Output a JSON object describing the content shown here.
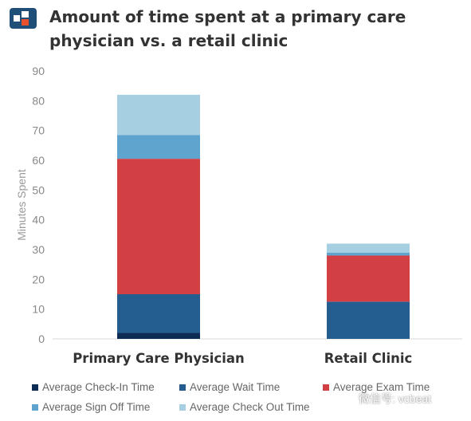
{
  "header": {
    "title": "Amount of time spent at a primary care physician vs. a retail clinic"
  },
  "logo": {
    "icon": "brand-logo-icon",
    "colors": [
      "#1f4e79",
      "#e8502f"
    ]
  },
  "chart_data": {
    "type": "bar",
    "stacked": true,
    "categories": [
      "Primary Care Physician",
      "Retail Clinic"
    ],
    "series": [
      {
        "name": "Average Check-In Time",
        "color": "#0d2c54",
        "values": [
          2,
          0
        ]
      },
      {
        "name": "Average Wait Time",
        "color": "#245d8f",
        "values": [
          13,
          12.5
        ]
      },
      {
        "name": "Average Exam Time",
        "color": "#d34043",
        "values": [
          45.5,
          15.5
        ]
      },
      {
        "name": "Average Sign Off Time",
        "color": "#5ea4cf",
        "values": [
          8,
          1
        ]
      },
      {
        "name": "Average Check Out Time",
        "color": "#a6d0e2",
        "values": [
          13.5,
          3
        ]
      }
    ],
    "ylabel": "Minutes Spent",
    "xlabel": "",
    "ylim": [
      0,
      90
    ],
    "yticks": [
      0,
      10,
      20,
      30,
      40,
      50,
      60,
      70,
      80,
      90
    ],
    "grid": false,
    "legend": "bottom"
  },
  "watermark": {
    "text": "微信号: vcbeat"
  }
}
